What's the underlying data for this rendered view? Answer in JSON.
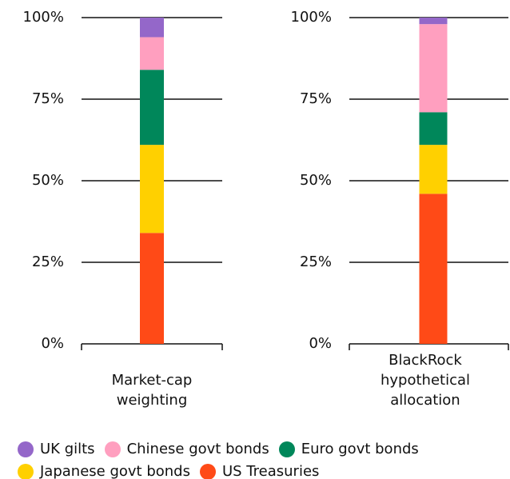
{
  "chart_data": {
    "type": "bar",
    "stacked": true,
    "categories": [
      "Market-cap weighting",
      "BlackRock hypothetical allocation"
    ],
    "series": [
      {
        "name": "US Treasuries",
        "color": "#ff4a17",
        "values": [
          34,
          46
        ]
      },
      {
        "name": "Japanese govt bonds",
        "color": "#ffd000",
        "values": [
          27,
          15
        ]
      },
      {
        "name": "Euro govt bonds",
        "color": "#00875a",
        "values": [
          23,
          10
        ]
      },
      {
        "name": "Chinese govt bonds",
        "color": "#ff9fbf",
        "values": [
          10,
          27
        ]
      },
      {
        "name": "UK gilts",
        "color": "#9467c9",
        "values": [
          6,
          2
        ]
      }
    ],
    "ylim": [
      0,
      100
    ],
    "yticks": [
      {
        "value": 0,
        "label": "0%"
      },
      {
        "value": 25,
        "label": "25%"
      },
      {
        "value": 50,
        "label": "50%"
      },
      {
        "value": 75,
        "label": "75%"
      },
      {
        "value": 100,
        "label": "100%"
      }
    ],
    "grid": true
  }
}
